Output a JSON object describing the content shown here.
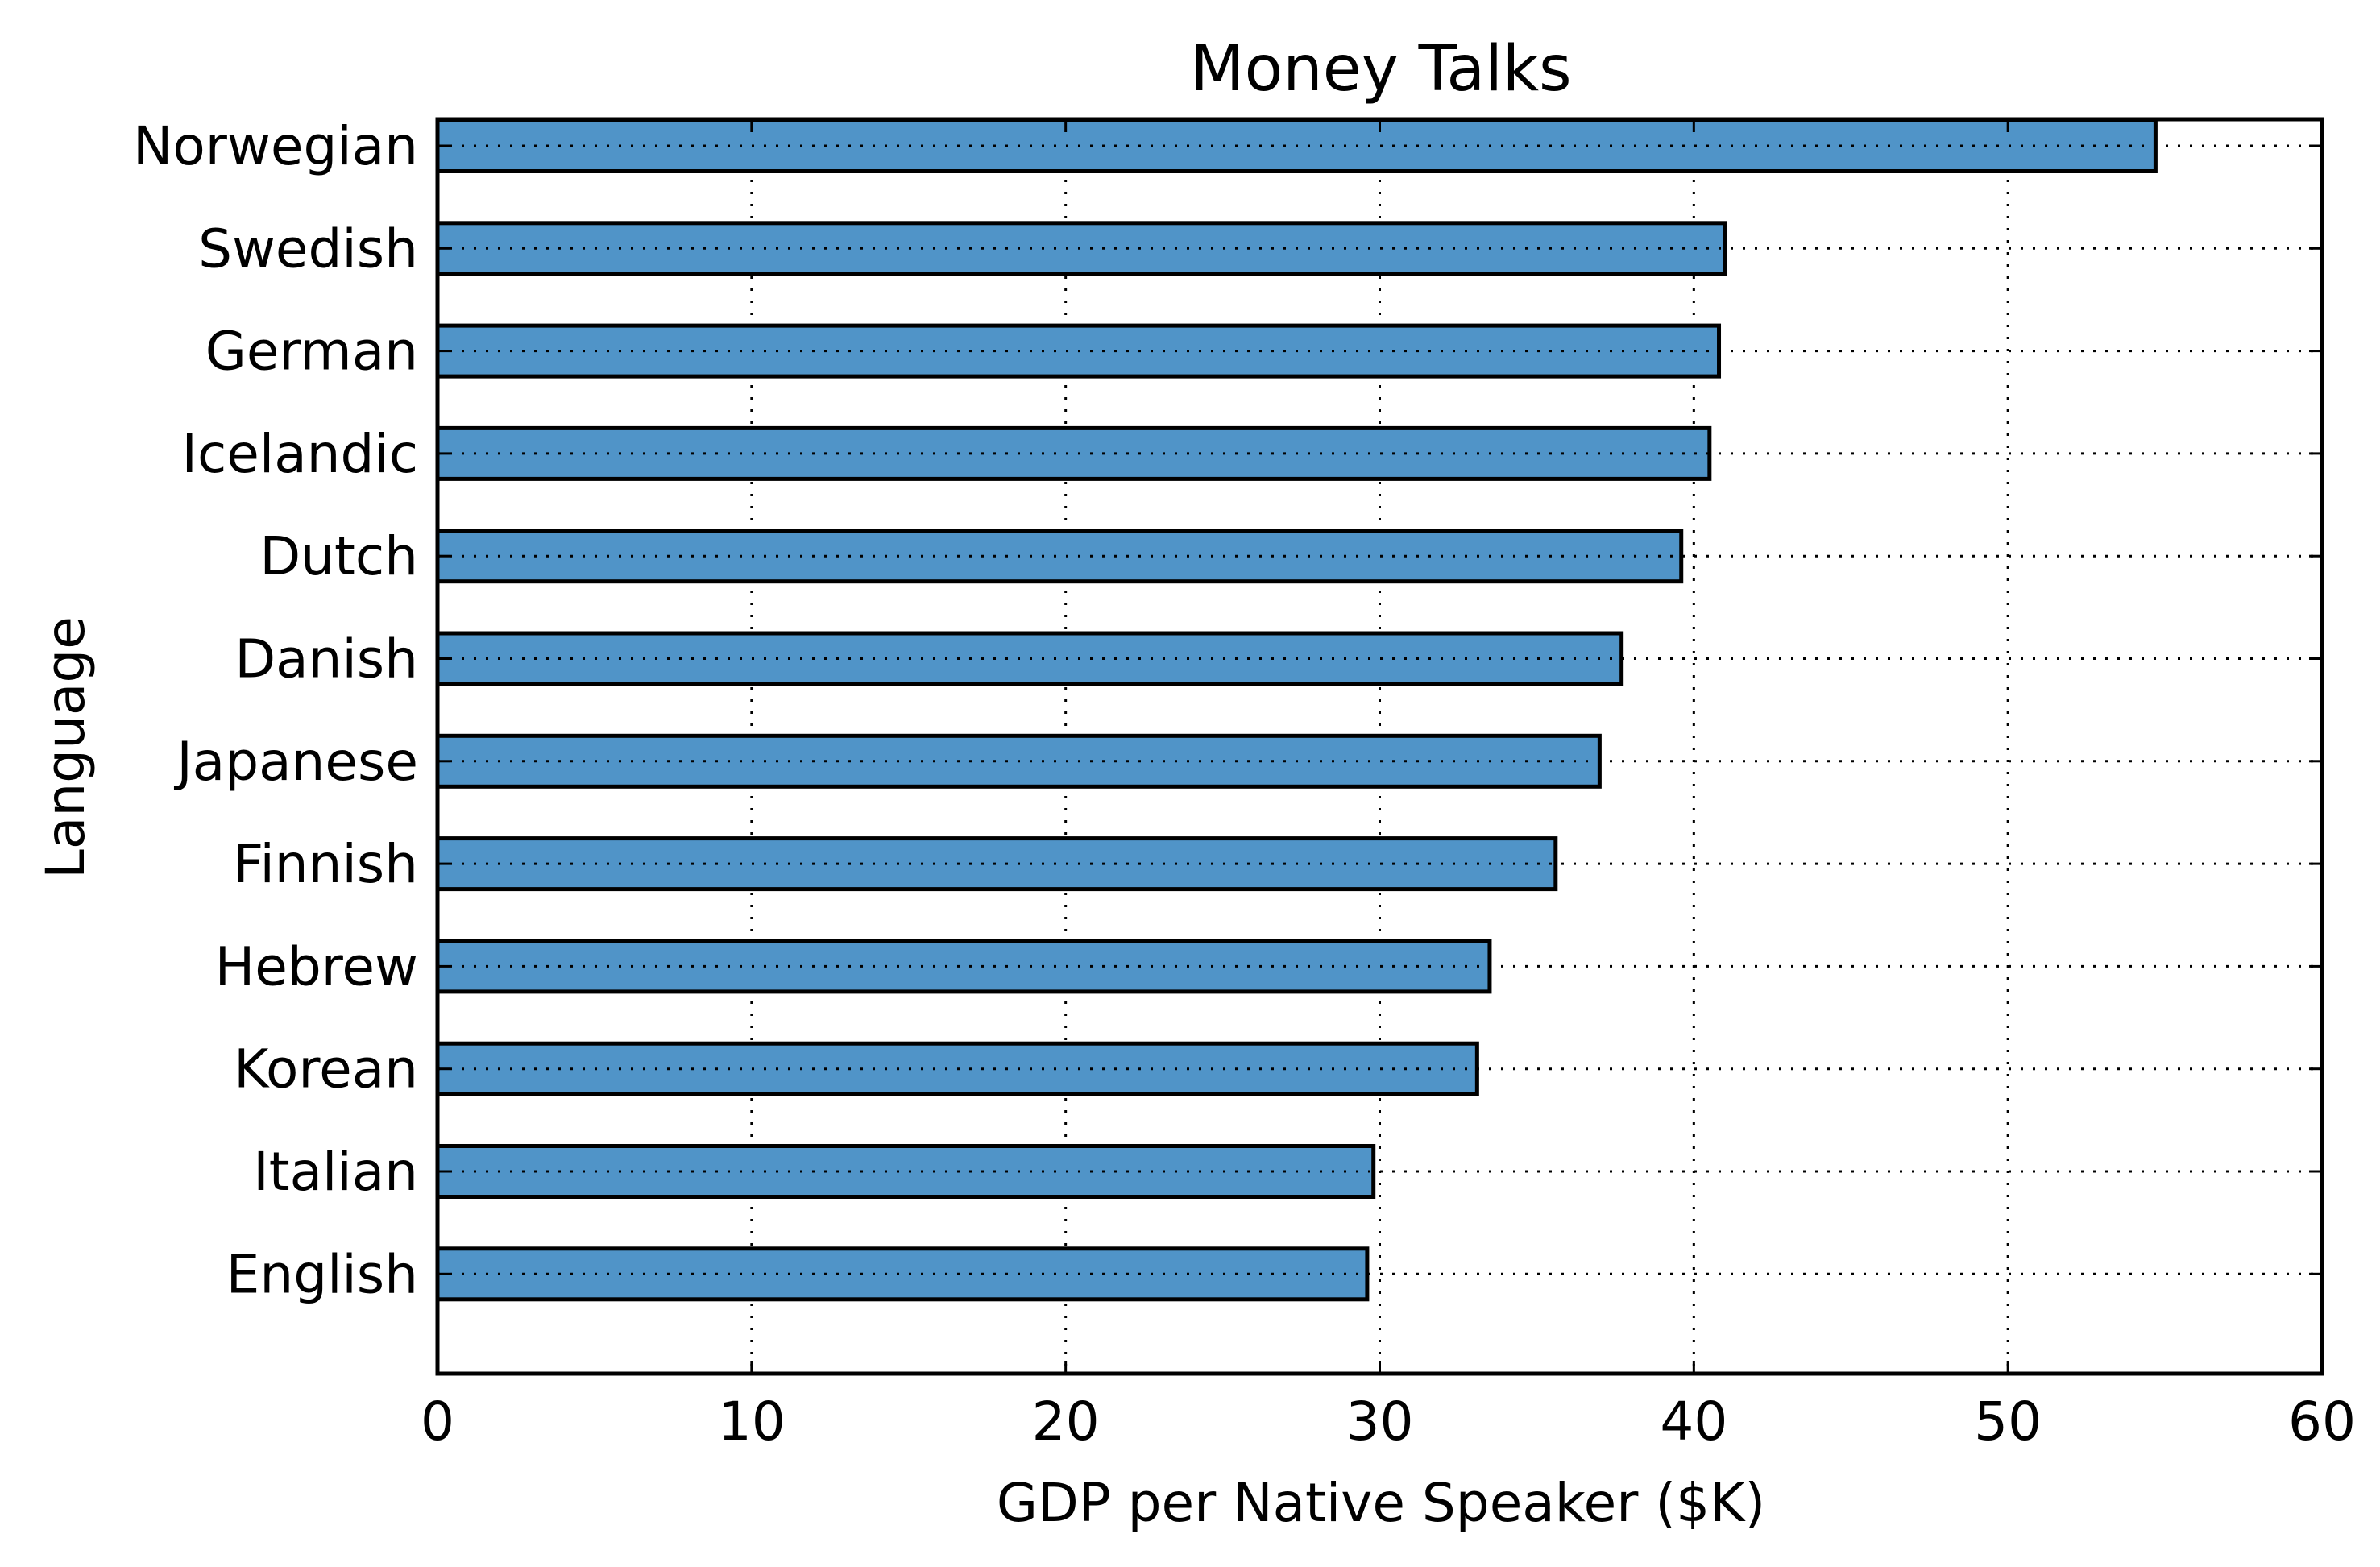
{
  "chart_data": {
    "type": "bar",
    "orientation": "horizontal",
    "title": "Money Talks",
    "xlabel": "GDP per Native Speaker ($K)",
    "ylabel": "Language",
    "xlim": [
      0,
      60
    ],
    "xticks": [
      0,
      10,
      20,
      30,
      40,
      50,
      60
    ],
    "grid": true,
    "legend": "none",
    "categories": [
      "Norwegian",
      "Swedish",
      "German",
      "Icelandic",
      "Dutch",
      "Danish",
      "Japanese",
      "Finnish",
      "Hebrew",
      "Korean",
      "Italian",
      "English"
    ],
    "values": [
      54.7,
      41.0,
      40.8,
      40.5,
      39.6,
      37.7,
      37.0,
      35.6,
      33.5,
      33.1,
      29.8,
      29.6
    ],
    "colors": {
      "bar_fill": "#5094c8",
      "bar_edge": "#000000",
      "grid": "#000000"
    }
  }
}
